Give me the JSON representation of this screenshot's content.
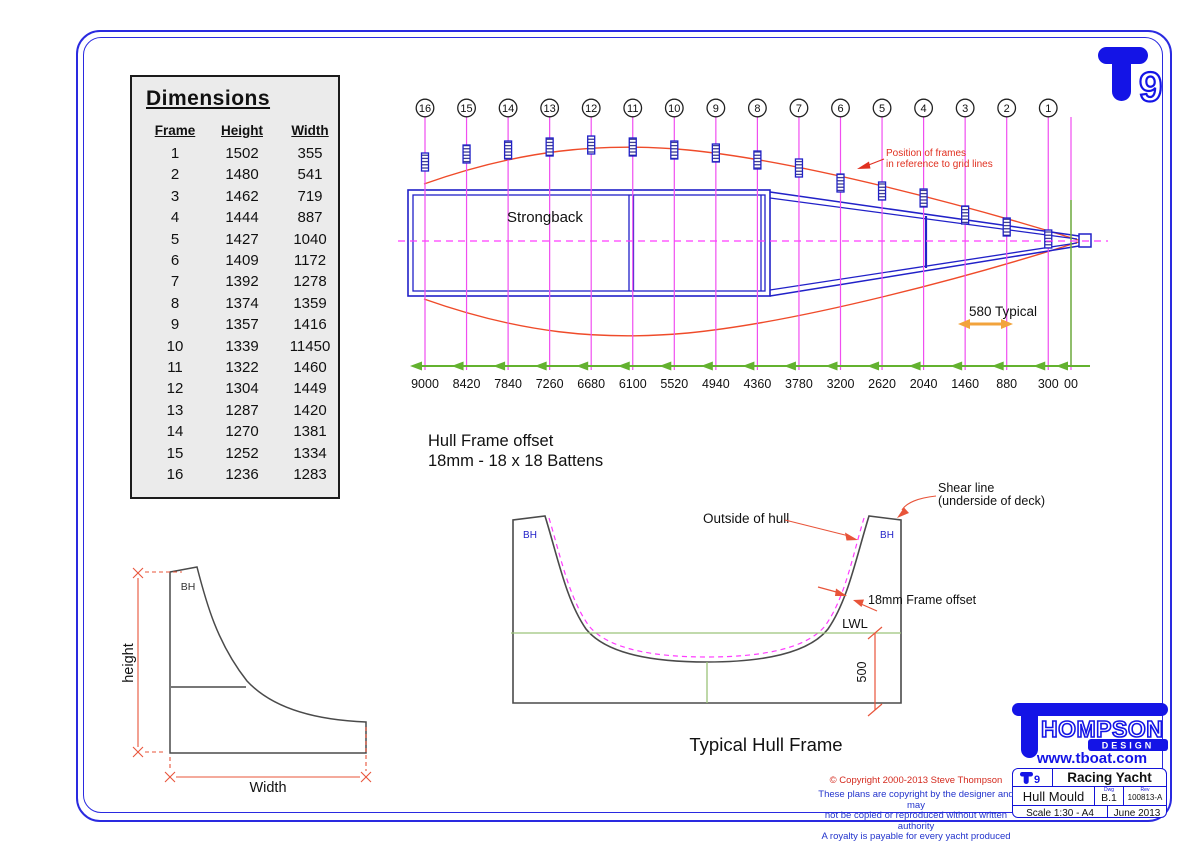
{
  "dimensions_table": {
    "title": "Dimensions",
    "headers": [
      "Frame",
      "Height",
      "Width"
    ],
    "rows": [
      [
        "1",
        "1502",
        "355"
      ],
      [
        "2",
        "1480",
        "541"
      ],
      [
        "3",
        "1462",
        "719"
      ],
      [
        "4",
        "1444",
        "887"
      ],
      [
        "5",
        "1427",
        "1040"
      ],
      [
        "6",
        "1409",
        "1172"
      ],
      [
        "7",
        "1392",
        "1278"
      ],
      [
        "8",
        "1374",
        "1359"
      ],
      [
        "9",
        "1357",
        "1416"
      ],
      [
        "10",
        "1339",
        "11450"
      ],
      [
        "11",
        "1322",
        "1460"
      ],
      [
        "12",
        "1304",
        "1449"
      ],
      [
        "13",
        "1287",
        "1420"
      ],
      [
        "14",
        "1270",
        "1381"
      ],
      [
        "15",
        "1252",
        "1334"
      ],
      [
        "16",
        "1236",
        "1283"
      ]
    ]
  },
  "plan": {
    "strongback_label": "Strongback",
    "typical_spacing_label": "580 Typical",
    "frames_note_line1": "Position of frames",
    "frames_note_line2": "in reference to grid lines",
    "offset_note_line1": "Hull Frame offset",
    "offset_note_line2": "18mm - 18 x 18 Battens",
    "stations": [
      {
        "frame": "16",
        "distance": "9000"
      },
      {
        "frame": "15",
        "distance": "8420"
      },
      {
        "frame": "14",
        "distance": "7840"
      },
      {
        "frame": "13",
        "distance": "7260"
      },
      {
        "frame": "12",
        "distance": "6680"
      },
      {
        "frame": "11",
        "distance": "6100"
      },
      {
        "frame": "10",
        "distance": "5520"
      },
      {
        "frame": "9",
        "distance": "4940"
      },
      {
        "frame": "8",
        "distance": "4360"
      },
      {
        "frame": "7",
        "distance": "3780"
      },
      {
        "frame": "6",
        "distance": "3200"
      },
      {
        "frame": "5",
        "distance": "2620"
      },
      {
        "frame": "4",
        "distance": "2040"
      },
      {
        "frame": "3",
        "distance": "1460"
      },
      {
        "frame": "2",
        "distance": "880"
      },
      {
        "frame": "1",
        "distance": "300"
      },
      {
        "frame": "",
        "distance": "00"
      }
    ]
  },
  "frame_section": {
    "outside_label": "Outside of hull",
    "shear_label_line1": "Shear line",
    "shear_label_line2": "(underside of deck)",
    "offset_label": "18mm Frame offset",
    "lwl_label": "LWL",
    "depth_dim": "500",
    "bh_left": "BH",
    "bh_right": "BH",
    "caption": "Typical Hull Frame"
  },
  "half_frame": {
    "bh": "BH",
    "height_label": "height",
    "width_label": "Width"
  },
  "branding": {
    "corner_nine": "9",
    "name": "HOMPSON",
    "design": "DESIGN",
    "website": "www.tboat.com"
  },
  "title_block": {
    "t9_nine": "9",
    "project": "Racing Yacht",
    "drawing_title": "Hull Mould",
    "dwg_label": "Dwg",
    "dwg_value": "B.1",
    "rev_label": "Rev",
    "rev_value": "100813-A",
    "scale": "Scale   1:30 - A4",
    "date": "June 2013"
  },
  "copyright": {
    "line1": "©  Copyright 2000-2013  Steve Thompson",
    "line2": "These plans are copyright by the designer and may",
    "line3": "not be copied or reproduced without written authority",
    "line4": "A royalty is payable for every yacht produced"
  },
  "colors": {
    "brand_blue": "#1414e6",
    "structure_blue": "#2121c8",
    "grid_magenta": "#f04ef0",
    "centerline_magenta": "#ff3cff",
    "outline_red": "#ef4b2a",
    "annotation_red": "#e03020",
    "baseline_green": "#63b22f",
    "lwl_green": "#9cc47a",
    "dim_orange": "#f2a33c"
  }
}
